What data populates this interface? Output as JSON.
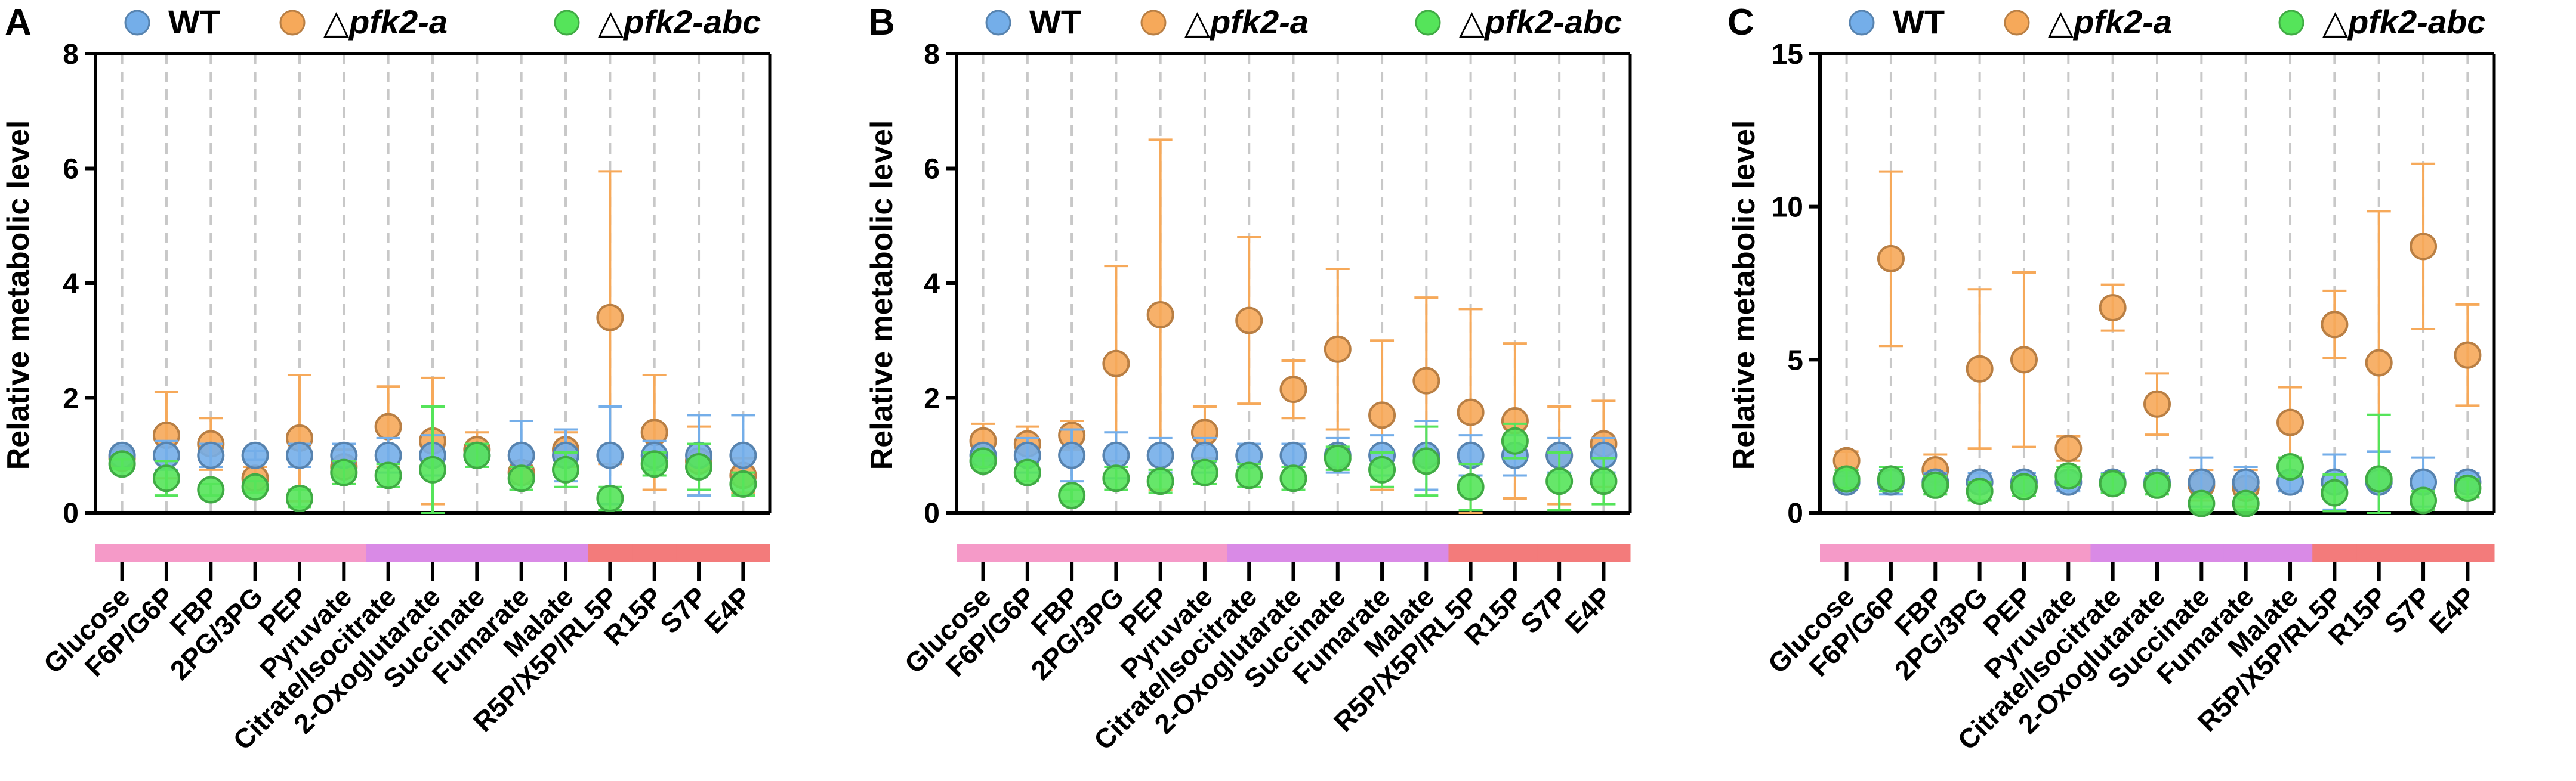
{
  "chart_data": [
    {
      "panel": "A",
      "type": "scatter",
      "ylabel": "Relative metabolic level",
      "ylim": [
        0,
        8
      ],
      "yticks": [
        0,
        2,
        4,
        6,
        8
      ],
      "grid": "vertical dashed",
      "legend_position": "top",
      "categories": [
        "Glucose",
        "F6P/G6P",
        "FBP",
        "2PG/3PG",
        "PEP",
        "Pyruvate",
        "Citrate/Isocitrate",
        "2-Oxoglutarate",
        "Succinate",
        "Fumarate",
        "Malate",
        "R5P/X5P/RL5P",
        "R15P",
        "S7P",
        "E4P"
      ],
      "series": [
        {
          "name": "WT",
          "label": "WT",
          "color": "#74aee9",
          "values": [
            1.0,
            1.0,
            1.0,
            1.0,
            1.0,
            1.0,
            1.0,
            1.0,
            1.0,
            1.0,
            1.0,
            1.0,
            1.0,
            1.0,
            1.0
          ],
          "errors": [
            0.05,
            0.25,
            0.2,
            0.08,
            0.2,
            0.2,
            0.3,
            0.35,
            0.2,
            0.6,
            0.45,
            0.85,
            0.25,
            0.7,
            0.7
          ]
        },
        {
          "name": "pfk2-a",
          "label": "pfk2-a",
          "color": "#f6a95a",
          "values": [
            0.95,
            1.35,
            1.2,
            0.6,
            1.3,
            0.8,
            1.5,
            1.25,
            1.1,
            0.7,
            1.1,
            3.4,
            1.4,
            0.9,
            0.65
          ],
          "errors": [
            0.1,
            0.75,
            0.45,
            0.2,
            1.1,
            0.3,
            0.7,
            1.1,
            0.3,
            0.2,
            0.3,
            2.55,
            1.0,
            0.6,
            0.3
          ]
        },
        {
          "name": "pfk2-abc",
          "label": "pfk2-abc",
          "color": "#55e45a",
          "values": [
            0.85,
            0.6,
            0.4,
            0.45,
            0.25,
            0.7,
            0.65,
            0.75,
            1.0,
            0.6,
            0.75,
            0.25,
            0.85,
            0.8,
            0.5
          ],
          "errors": [
            0.08,
            0.3,
            0.1,
            0.1,
            0.15,
            0.2,
            0.2,
            1.1,
            0.2,
            0.2,
            0.3,
            0.2,
            0.2,
            0.4,
            0.2
          ]
        }
      ],
      "pathway_bar_colors": [
        "#f59ac8",
        "#f59ac8",
        "#f59ac8",
        "#f59ac8",
        "#f59ac8",
        "#f59ac8",
        "#d98ae6",
        "#d98ae6",
        "#d98ae6",
        "#d98ae6",
        "#d98ae6",
        "#f37b7b",
        "#f37b7b",
        "#f37b7b",
        "#f37b7b"
      ]
    },
    {
      "panel": "B",
      "type": "scatter",
      "ylabel": "Relative metabolic level",
      "ylim": [
        0,
        8
      ],
      "yticks": [
        0,
        2,
        4,
        6,
        8
      ],
      "grid": "vertical dashed",
      "legend_position": "top",
      "categories": [
        "Glucose",
        "F6P/G6P",
        "FBP",
        "2PG/3PG",
        "PEP",
        "Pyruvate",
        "Citrate/Isocitrate",
        "2-Oxoglutarate",
        "Succinate",
        "Fumarate",
        "Malate",
        "R5P/X5P/RL5P",
        "R15P",
        "S7P",
        "E4P"
      ],
      "series": [
        {
          "name": "WT",
          "label": "WT",
          "color": "#74aee9",
          "values": [
            1.0,
            1.0,
            1.0,
            1.0,
            1.0,
            1.0,
            1.0,
            1.0,
            1.0,
            1.0,
            1.0,
            1.0,
            1.0,
            1.0,
            1.0
          ],
          "errors": [
            0.1,
            0.3,
            0.45,
            0.4,
            0.3,
            0.3,
            0.2,
            0.2,
            0.3,
            0.35,
            0.6,
            0.35,
            0.35,
            0.3,
            0.3
          ]
        },
        {
          "name": "pfk2-a",
          "label": "pfk2-a",
          "color": "#f6a95a",
          "values": [
            1.25,
            1.2,
            1.35,
            2.6,
            3.45,
            1.4,
            3.35,
            2.15,
            2.85,
            1.7,
            2.3,
            1.75,
            1.6,
            1.0,
            1.2
          ],
          "errors": [
            0.3,
            0.3,
            0.25,
            1.7,
            3.05,
            0.45,
            1.45,
            0.5,
            1.4,
            1.3,
            1.45,
            1.8,
            1.35,
            0.85,
            0.75
          ]
        },
        {
          "name": "pfk2-abc",
          "label": "pfk2-abc",
          "color": "#55e45a",
          "values": [
            0.9,
            0.7,
            0.3,
            0.6,
            0.55,
            0.7,
            0.65,
            0.6,
            0.95,
            0.75,
            0.9,
            0.45,
            1.25,
            0.55,
            0.55
          ],
          "errors": [
            0.1,
            0.15,
            0.1,
            0.2,
            0.2,
            0.2,
            0.2,
            0.2,
            0.2,
            0.3,
            0.6,
            0.4,
            0.3,
            0.5,
            0.4
          ]
        }
      ],
      "pathway_bar_colors": [
        "#f59ac8",
        "#f59ac8",
        "#f59ac8",
        "#f59ac8",
        "#f59ac8",
        "#f59ac8",
        "#d98ae6",
        "#d98ae6",
        "#d98ae6",
        "#d98ae6",
        "#d98ae6",
        "#f37b7b",
        "#f37b7b",
        "#f37b7b",
        "#f37b7b"
      ]
    },
    {
      "panel": "C",
      "type": "scatter",
      "ylabel": "Relative metabolic level",
      "ylim": [
        0,
        15
      ],
      "yticks": [
        0,
        5,
        10,
        15
      ],
      "grid": "vertical dashed",
      "legend_position": "top",
      "categories": [
        "Glucose",
        "F6P/G6P",
        "FBP",
        "2PG/3PG",
        "PEP",
        "Pyruvate",
        "Citrate/Isocitrate",
        "2-Oxoglutarate",
        "Succinate",
        "Fumarate",
        "Malate",
        "R5P/X5P/RL5P",
        "R15P",
        "S7P",
        "E4P"
      ],
      "series": [
        {
          "name": "WT",
          "label": "WT",
          "color": "#74aee9",
          "values": [
            1.0,
            1.0,
            1.0,
            1.0,
            1.0,
            1.0,
            1.0,
            1.0,
            1.0,
            1.0,
            1.0,
            1.0,
            1.0,
            1.0,
            1.0
          ],
          "errors": [
            0.2,
            0.4,
            0.3,
            0.3,
            0.3,
            0.3,
            0.3,
            0.3,
            0.8,
            0.5,
            0.3,
            0.9,
            1.0,
            0.8,
            0.3
          ]
        },
        {
          "name": "pfk2-a",
          "label": "pfk2-a",
          "color": "#f6a95a",
          "values": [
            1.7,
            8.3,
            1.4,
            4.7,
            5.0,
            2.1,
            6.7,
            3.55,
            0.9,
            0.8,
            2.95,
            6.15,
            4.9,
            8.7,
            5.15
          ],
          "errors": [
            0.3,
            2.85,
            0.5,
            2.6,
            2.85,
            0.4,
            0.75,
            1.0,
            0.5,
            0.6,
            1.15,
            1.1,
            4.95,
            2.7,
            1.65
          ]
        },
        {
          "name": "pfk2-abc",
          "label": "pfk2-abc",
          "color": "#55e45a",
          "values": [
            1.1,
            1.1,
            0.9,
            0.7,
            0.85,
            1.2,
            0.95,
            0.9,
            0.3,
            0.3,
            1.5,
            0.65,
            1.1,
            0.4,
            0.8
          ],
          "errors": [
            0.3,
            0.4,
            0.3,
            0.3,
            0.3,
            0.3,
            0.3,
            0.3,
            0.2,
            0.2,
            0.3,
            0.6,
            2.1,
            0.3,
            0.3
          ]
        }
      ],
      "pathway_bar_colors": [
        "#f59ac8",
        "#f59ac8",
        "#f59ac8",
        "#f59ac8",
        "#f59ac8",
        "#f59ac8",
        "#d98ae6",
        "#d98ae6",
        "#d98ae6",
        "#d98ae6",
        "#d98ae6",
        "#f37b7b",
        "#f37b7b",
        "#f37b7b",
        "#f37b7b"
      ]
    }
  ],
  "legend_prefix": "△"
}
